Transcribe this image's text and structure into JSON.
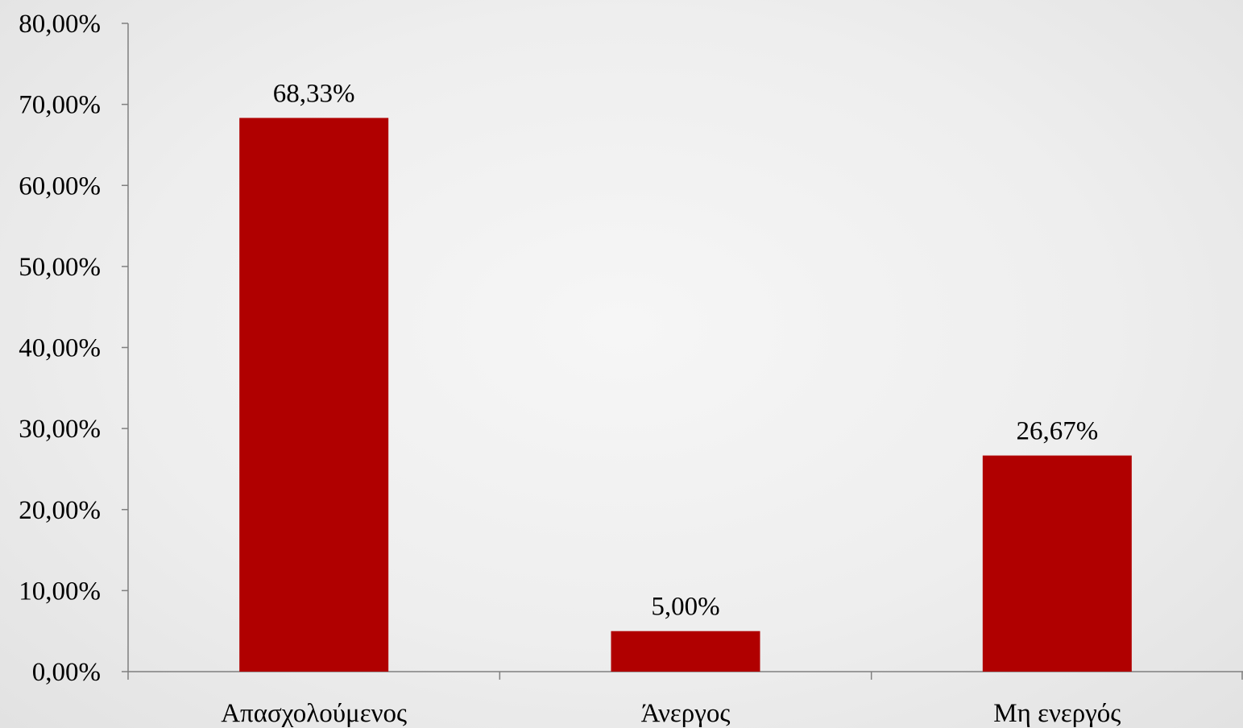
{
  "chart_data": {
    "type": "bar",
    "categories": [
      "Απασχολούμενος",
      "Άνεργος",
      "Μη ενεργός"
    ],
    "values": [
      68.33,
      5.0,
      26.67
    ],
    "data_labels": [
      "68,33%",
      "5,00%",
      "26,67%"
    ],
    "title": "",
    "xlabel": "",
    "ylabel": "",
    "ylim": [
      0,
      80
    ],
    "yticks": [
      0,
      10,
      20,
      30,
      40,
      50,
      60,
      70,
      80
    ],
    "ytick_labels": [
      "0,00%",
      "10,00%",
      "20,00%",
      "30,00%",
      "40,00%",
      "50,00%",
      "60,00%",
      "70,00%",
      "80,00%"
    ],
    "grid": false,
    "legend": "none",
    "bar_color": "#b00000",
    "axis_color": "#7f7f7f"
  }
}
